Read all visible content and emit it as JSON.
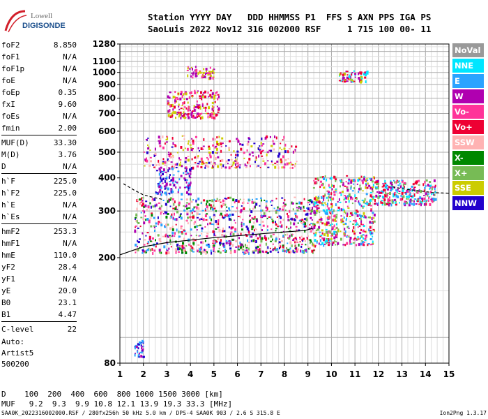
{
  "logo": {
    "line1": "Lowell",
    "line2": "DIGISONDE",
    "accent": "#d21f2a"
  },
  "header": {
    "labels": "Station YYYY DAY   DDD HHMMSS P1  FFS S AXN PPS IGA PS",
    "values": "SaoLuis 2022 Nov12 316 002000 RSF     1 715 100 00- 11"
  },
  "params_groups": [
    [
      {
        "name": "foF2",
        "value": "8.850"
      },
      {
        "name": "foF1",
        "value": "N/A"
      },
      {
        "name": "foF1p",
        "value": "N/A"
      },
      {
        "name": "foE",
        "value": "N/A"
      },
      {
        "name": "foEp",
        "value": "0.35"
      },
      {
        "name": "fxI",
        "value": "9.60"
      },
      {
        "name": "foEs",
        "value": "N/A"
      },
      {
        "name": "fmin",
        "value": "2.00"
      }
    ],
    [
      {
        "name": "MUF(D)",
        "value": "33.30"
      },
      {
        "name": "M(D)",
        "value": "3.76"
      },
      {
        "name": "D",
        "value": "N/A"
      }
    ],
    [
      {
        "name": "h`F",
        "value": "225.0"
      },
      {
        "name": "h`F2",
        "value": "225.0"
      },
      {
        "name": "h`E",
        "value": "N/A"
      },
      {
        "name": "h`Es",
        "value": "N/A"
      }
    ],
    [
      {
        "name": "hmF2",
        "value": "253.3"
      },
      {
        "name": "hmF1",
        "value": "N/A"
      },
      {
        "name": "hmE",
        "value": "110.0"
      },
      {
        "name": "yF2",
        "value": "28.4"
      },
      {
        "name": "yF1",
        "value": "N/A"
      },
      {
        "name": "yE",
        "value": "20.0"
      },
      {
        "name": "B0",
        "value": "23.1"
      },
      {
        "name": "B1",
        "value": "4.47"
      }
    ],
    [
      {
        "name": "C-level",
        "value": "22"
      }
    ]
  ],
  "auto": {
    "line1": "Auto:",
    "line2": "Artist5",
    "line3": "500200"
  },
  "legend": [
    {
      "label": "NoVal",
      "color": "#999999"
    },
    {
      "label": "NNE",
      "color": "#00e6ff"
    },
    {
      "label": "E",
      "color": "#2ba3ff"
    },
    {
      "label": "W",
      "color": "#b000b0"
    },
    {
      "label": "Vo-",
      "color": "#ff3399"
    },
    {
      "label": "Vo+",
      "color": "#ee0033"
    },
    {
      "label": "SSW",
      "color": "#ffb3b3"
    },
    {
      "label": "X-",
      "color": "#008800"
    },
    {
      "label": "X+",
      "color": "#77bb55"
    },
    {
      "label": "SSE",
      "color": "#cccc00"
    },
    {
      "label": "NNW",
      "color": "#2200cc"
    }
  ],
  "dmuf": {
    "d_line": "D    100  200  400  600  800 1000 1500 3000 [km]",
    "muf_line": "MUF   9.2  9.3  9.9 10.8 12.1 13.9 19.3 33.3 [MHz]"
  },
  "footer": {
    "left": "SAA0K_2022316002000.RSF / 280fx256h 50 kHz 5.0 km / DPS-4 SAA0K 903 / 2.6 S 315.8 E",
    "right": "Ion2Png 1.3.17"
  },
  "chart_data": {
    "type": "scatter",
    "x_ticks": [
      "1",
      "2",
      "3",
      "4",
      "5",
      "6",
      "7",
      "8",
      "9",
      "10",
      "11",
      "12",
      "13",
      "14",
      "15"
    ],
    "y_ticks": [
      {
        "value": 80,
        "label": "80"
      },
      {
        "value": 200,
        "label": "200"
      },
      {
        "value": 300,
        "label": "300"
      },
      {
        "value": 400,
        "label": "400"
      },
      {
        "value": 500,
        "label": "500"
      },
      {
        "value": 600,
        "label": "600"
      },
      {
        "value": 700,
        "label": "700"
      },
      {
        "value": 800,
        "label": "800"
      },
      {
        "value": 900,
        "label": "900"
      },
      {
        "value": 1000,
        "label": "1000"
      },
      {
        "value": 1100,
        "label": "1100"
      },
      {
        "value": 1280,
        "label": "1280"
      }
    ],
    "xlim": [
      1,
      15
    ],
    "ylim": [
      80,
      1280
    ],
    "y_scale": "log",
    "grid": true,
    "trace_profile": [
      [
        1.0,
        205
      ],
      [
        2.0,
        220
      ],
      [
        3.0,
        228
      ],
      [
        4.0,
        233
      ],
      [
        5.0,
        238
      ],
      [
        6.0,
        242
      ],
      [
        7.0,
        246
      ],
      [
        8.0,
        250
      ],
      [
        8.85,
        253
      ],
      [
        9.2,
        258
      ]
    ],
    "trace_oray_dashed": [
      [
        1.15,
        380
      ],
      [
        1.6,
        360
      ],
      [
        2.0,
        345
      ],
      [
        2.4,
        338
      ],
      [
        2.8,
        332
      ]
    ],
    "trace_upper_dashed": [
      [
        12.6,
        370
      ],
      [
        13.2,
        362
      ],
      [
        13.8,
        357
      ],
      [
        14.3,
        352
      ],
      [
        15.0,
        350
      ]
    ],
    "clusters": [
      {
        "x": [
          1.6,
          9.3
        ],
        "y": [
          210,
          340
        ],
        "n": 900,
        "colors": [
          "#ee0033",
          "#ff3399",
          "#2200cc",
          "#b000b0",
          "#2ba3ff",
          "#008800",
          "#77bb55",
          "#ffb3b3"
        ]
      },
      {
        "x": [
          9.2,
          11.8
        ],
        "y": [
          225,
          410
        ],
        "n": 500,
        "colors": [
          "#ee0033",
          "#ff3399",
          "#b000b0",
          "#77bb55",
          "#cccc00",
          "#2ba3ff",
          "#00e6ff"
        ]
      },
      {
        "x": [
          11.8,
          14.4
        ],
        "y": [
          320,
          395
        ],
        "n": 260,
        "colors": [
          "#00e6ff",
          "#ff3399",
          "#b000b0",
          "#2ba3ff",
          "#ee0033",
          "#77bb55"
        ]
      },
      {
        "x": [
          2.0,
          8.5
        ],
        "y": [
          440,
          580
        ],
        "n": 330,
        "colors": [
          "#b000b0",
          "#ff3399",
          "#ee0033",
          "#2200cc",
          "#cccc00",
          "#ffb3b3"
        ]
      },
      {
        "x": [
          3.0,
          5.2
        ],
        "y": [
          680,
          860
        ],
        "n": 200,
        "colors": [
          "#b000b0",
          "#ff3399",
          "#cccc00",
          "#ee0033"
        ]
      },
      {
        "x": [
          3.8,
          5.0
        ],
        "y": [
          960,
          1060
        ],
        "n": 60,
        "colors": [
          "#cccc00",
          "#b000b0",
          "#ff3399"
        ]
      },
      {
        "x": [
          10.3,
          11.6
        ],
        "y": [
          930,
          1020
        ],
        "n": 70,
        "colors": [
          "#00e6ff",
          "#b000b0",
          "#ee0033",
          "#cccc00"
        ]
      },
      {
        "x": [
          1.6,
          2.0
        ],
        "y": [
          85,
          98
        ],
        "n": 35,
        "colors": [
          "#2200cc",
          "#2ba3ff",
          "#b000b0"
        ]
      },
      {
        "x": [
          2.5,
          4.0
        ],
        "y": [
          350,
          440
        ],
        "n": 120,
        "colors": [
          "#2200cc",
          "#b000b0",
          "#2ba3ff"
        ]
      }
    ]
  }
}
